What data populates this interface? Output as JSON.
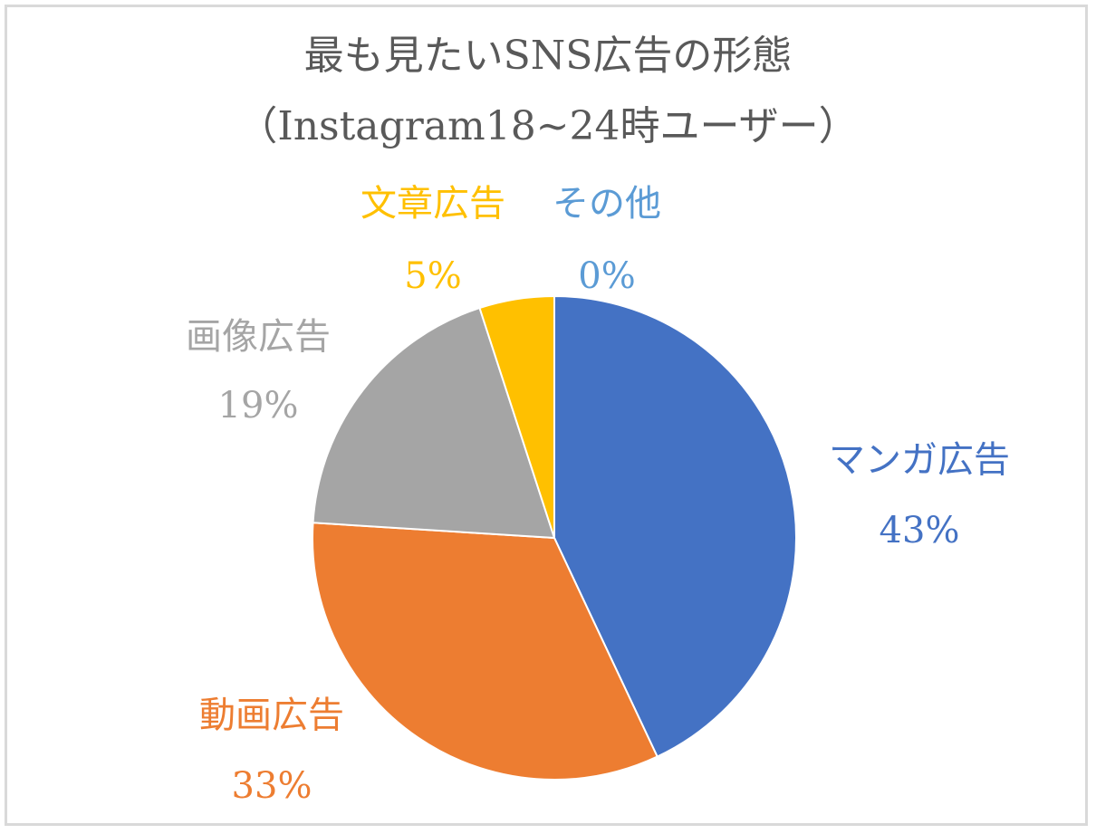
{
  "chart_data": {
    "type": "pie",
    "title": "最も見たいSNS広告の形態",
    "subtitle": "（Instagram18~24時ユーザー）",
    "start_angle_deg": 0,
    "direction": "clockwise",
    "slices": [
      {
        "name": "マンガ広告",
        "value": 43,
        "label_pct": "43%",
        "color": "#4472c4"
      },
      {
        "name": "動画広告",
        "value": 33,
        "label_pct": "33%",
        "color": "#ed7d31"
      },
      {
        "name": "画像広告",
        "value": 19,
        "label_pct": "19%",
        "color": "#a5a5a5"
      },
      {
        "name": "文章広告",
        "value": 5,
        "label_pct": "5%",
        "color": "#ffc000"
      },
      {
        "name": "その他",
        "value": 0,
        "label_pct": "0%",
        "color": "#5b9bd5"
      }
    ],
    "legend": "none"
  }
}
